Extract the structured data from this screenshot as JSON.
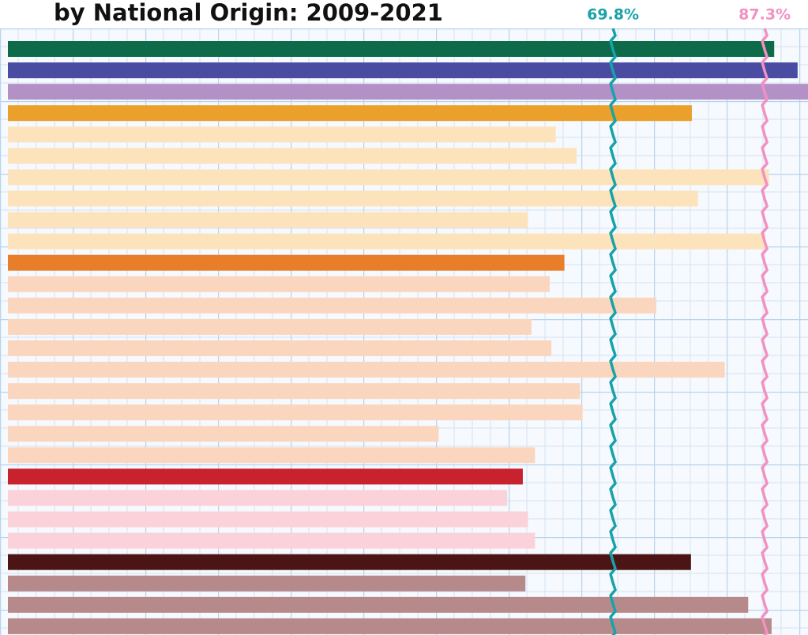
{
  "chart_data": {
    "type": "bar",
    "orientation": "horizontal",
    "title": "by National Origin:  2009-2021",
    "values": [
      88.4,
      91.1,
      93.0,
      78.9,
      63.2,
      65.6,
      87.8,
      79.6,
      60.0,
      87.4,
      64.2,
      62.5,
      74.8,
      60.4,
      62.7,
      82.7,
      66.0,
      66.3,
      49.7,
      60.8,
      59.4,
      57.6,
      60.0,
      60.8,
      78.8,
      59.7,
      85.4,
      88.1
    ],
    "colors": [
      "#0e6b4a",
      "#4a4ca2",
      "#b391c6",
      "#eaa02a",
      "#fde3bc",
      "#fde3bc",
      "#fde3bc",
      "#fde3bc",
      "#fde3bc",
      "#fde3bc",
      "#e97e2a",
      "#fbd6bf",
      "#fbd6bf",
      "#fbd6bf",
      "#fbd6bf",
      "#fbd6bf",
      "#fbd6bf",
      "#fbd6bf",
      "#fbd6bf",
      "#fbd6bf",
      "#c9222f",
      "#fbd2da",
      "#fbd2da",
      "#fbd2da",
      "#4b1515",
      "#b68a8b",
      "#b68a8b",
      "#b68a8b"
    ],
    "xlim": [
      0,
      92.3
    ],
    "reference_lines": [
      {
        "value": 69.8,
        "label": "69.8%",
        "color": "#18a2a9"
      },
      {
        "value": 87.3,
        "label": "87.3%",
        "color": "#f290c2"
      }
    ]
  }
}
